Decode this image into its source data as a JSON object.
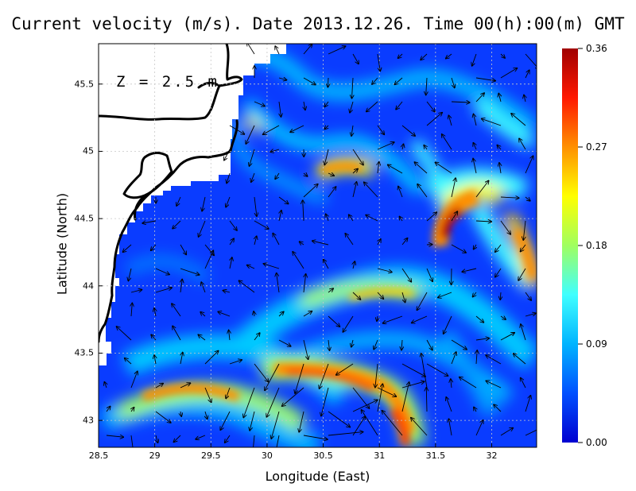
{
  "title": "Current velocity (m/s). Date 2013.12.26. Time 00(h):00(m) GMT",
  "depth_label": "Z = 2.5 m",
  "x_axis": {
    "label": "Longitude (East)",
    "range": [
      28.5,
      32.4
    ],
    "ticks": [
      "28.5",
      "29",
      "29.5",
      "30",
      "30.5",
      "31",
      "31.5",
      "32"
    ],
    "values": [
      28.5,
      29,
      29.5,
      30,
      30.5,
      31,
      31.5,
      32
    ]
  },
  "y_axis": {
    "label": "Latitude (North)",
    "range": [
      42.8,
      45.8
    ],
    "ticks": [
      "43",
      "43.5",
      "44",
      "44.5",
      "45",
      "45.5"
    ],
    "values": [
      43,
      43.5,
      44,
      44.5,
      45,
      45.5
    ]
  },
  "colorbar": {
    "ticks": [
      "0.00",
      "0.09",
      "0.18",
      "0.27",
      "0.36"
    ],
    "values": [
      0,
      0.09,
      0.18,
      0.27,
      0.36
    ],
    "colors": [
      "#0000d0",
      "#0050ff",
      "#00b4ff",
      "#40ffff",
      "#a0ff60",
      "#ffff00",
      "#ff9000",
      "#ff1800",
      "#a00000"
    ]
  },
  "grid": true,
  "chart_data": {
    "type": "heatmap",
    "title": "Current velocity (m/s). Date 2013.12.26. Time 00(h):00(m) GMT",
    "xlabel": "Longitude (East)",
    "ylabel": "Latitude (North)",
    "xlim": [
      28.5,
      32.4
    ],
    "ylim": [
      42.8,
      45.8
    ],
    "value_range": [
      0,
      0.36
    ],
    "hotspots": [
      {
        "lon": 31.6,
        "lat": 44.4,
        "speed": 0.35
      },
      {
        "lon": 31.2,
        "lat": 43.0,
        "speed": 0.3
      },
      {
        "lon": 30.7,
        "lat": 43.35,
        "speed": 0.3
      },
      {
        "lon": 29.4,
        "lat": 43.15,
        "speed": 0.26
      },
      {
        "lon": 30.6,
        "lat": 44.85,
        "speed": 0.28
      },
      {
        "lon": 31.0,
        "lat": 43.95,
        "speed": 0.24
      },
      {
        "lon": 32.3,
        "lat": 44.3,
        "speed": 0.27
      }
    ]
  }
}
